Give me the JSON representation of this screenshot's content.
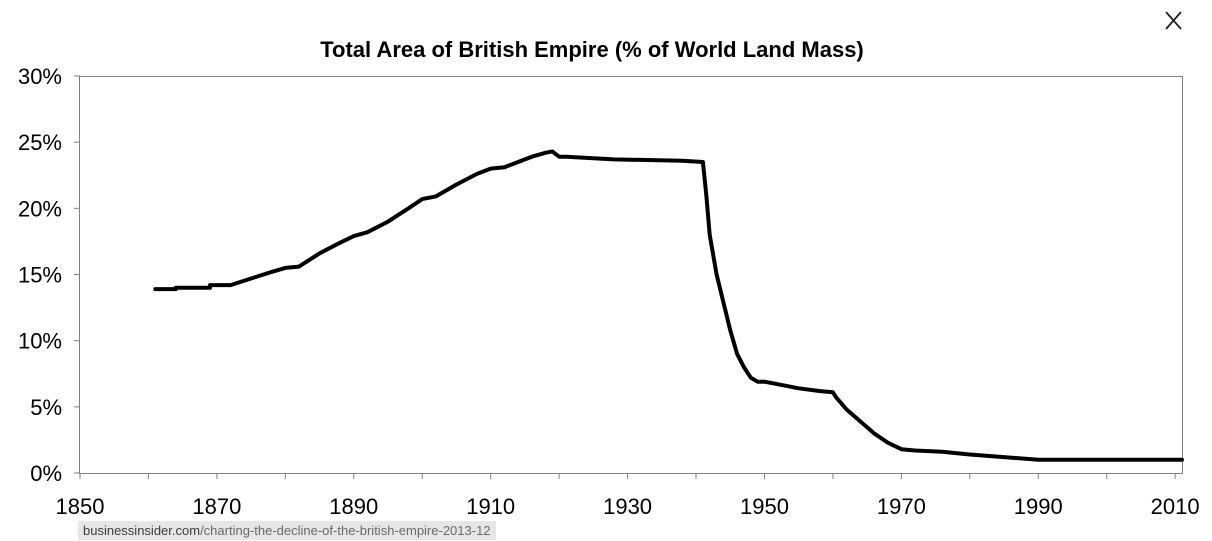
{
  "close_icon": "close-icon",
  "source": {
    "host": "businessinsider.com",
    "path": "/charting-the-decline-of-the-british-empire-2013-12"
  },
  "chart_data": {
    "type": "line",
    "title": "Total Area of British Empire (% of World Land Mass)",
    "xlabel": "",
    "ylabel": "",
    "xlim": [
      1850,
      2011
    ],
    "ylim": [
      0,
      30
    ],
    "x_ticks": [
      "1850",
      "1870",
      "1890",
      "1910",
      "1930",
      "1950",
      "1970",
      "1990",
      "2010"
    ],
    "y_ticks": [
      "0%",
      "5%",
      "10%",
      "15%",
      "20%",
      "25%",
      "30%"
    ],
    "grid": false,
    "legend": "none",
    "line_color": "#000000",
    "series": [
      {
        "x": [
          1861,
          1864,
          1864,
          1869,
          1869,
          1872,
          1875,
          1878,
          1880,
          1882,
          1885,
          1888,
          1890,
          1892,
          1895,
          1898,
          1900,
          1902,
          1905,
          1908,
          1910,
          1912,
          1914,
          1916,
          1918,
          1919,
          1920,
          1921,
          1928,
          1938,
          1941,
          1941.5,
          1942,
          1943,
          1944,
          1945,
          1946,
          1947,
          1948,
          1949,
          1950,
          1952,
          1955,
          1958,
          1960,
          1960.5,
          1962,
          1964,
          1966,
          1968,
          1970,
          1972,
          1976,
          1980,
          1985,
          1990,
          2000,
          2011
        ],
        "y": [
          13.9,
          13.9,
          14.0,
          14.0,
          14.2,
          14.2,
          14.7,
          15.2,
          15.5,
          15.6,
          16.6,
          17.4,
          17.9,
          18.2,
          19.0,
          20.0,
          20.7,
          20.9,
          21.8,
          22.6,
          23.0,
          23.1,
          23.5,
          23.9,
          24.2,
          24.3,
          23.9,
          23.9,
          23.7,
          23.6,
          23.5,
          21.0,
          18.0,
          15.0,
          12.9,
          10.8,
          9.0,
          8.0,
          7.2,
          6.9,
          6.9,
          6.7,
          6.4,
          6.2,
          6.1,
          5.7,
          4.8,
          3.9,
          3.0,
          2.3,
          1.8,
          1.7,
          1.6,
          1.4,
          1.2,
          1.0,
          1.0,
          1.0
        ]
      }
    ]
  }
}
